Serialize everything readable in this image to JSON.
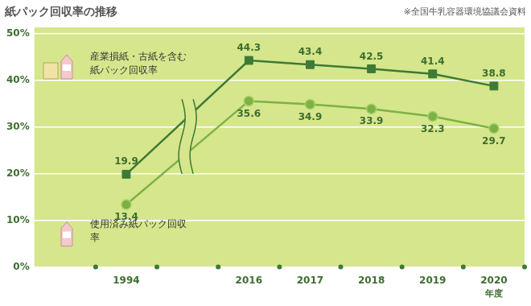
{
  "chart_data": {
    "type": "line",
    "title": "紙パック回収率の推移",
    "note": "※全国牛乳容器環境協議会資料",
    "x_label": "年度",
    "categories": [
      null,
      "1994",
      null,
      "2016",
      "2017",
      "2018",
      "2019",
      "2020"
    ],
    "series": [
      {
        "name": "産業損紙・古紙を含む紙パック回収率",
        "color": "#3d7a35",
        "marker": "square",
        "values": [
          null,
          19.9,
          null,
          44.3,
          43.4,
          42.5,
          41.4,
          38.8
        ]
      },
      {
        "name": "使用済み紙パック回収率",
        "color": "#7cb245",
        "marker": "circle",
        "values": [
          null,
          13.4,
          null,
          35.6,
          34.9,
          33.9,
          32.3,
          29.7
        ]
      }
    ],
    "ylim": [
      0,
      50
    ],
    "yticks": [
      {
        "value": 0,
        "label": "0%"
      },
      {
        "value": 10,
        "label": "10%"
      },
      {
        "value": 20,
        "label": "20%"
      },
      {
        "value": 30,
        "label": "30%"
      },
      {
        "value": 40,
        "label": "40%"
      },
      {
        "value": 50,
        "label": "50%"
      }
    ],
    "grid": true,
    "data_labels": true
  }
}
